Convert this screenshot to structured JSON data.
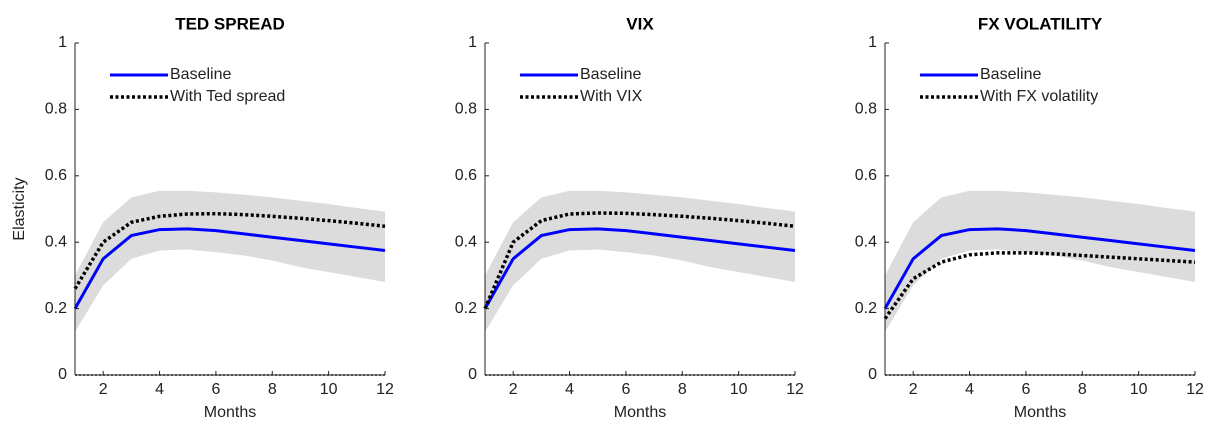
{
  "chart_data": [
    {
      "type": "line",
      "title": "TED SPREAD",
      "xlabel": "Months",
      "ylabel": "Elasticity",
      "x": [
        1,
        2,
        3,
        4,
        5,
        6,
        7,
        8,
        9,
        10,
        11,
        12
      ],
      "xlim": [
        1,
        12
      ],
      "xticks": [
        2,
        4,
        6,
        8,
        10,
        12
      ],
      "ylim": [
        0,
        1
      ],
      "yticks": [
        0,
        0.2,
        0.4,
        0.6,
        0.8,
        1
      ],
      "band": {
        "color": "#dcdcdc",
        "upper": [
          0.3,
          0.46,
          0.535,
          0.555,
          0.555,
          0.55,
          0.543,
          0.535,
          0.525,
          0.515,
          0.503,
          0.492
        ],
        "lower": [
          0.13,
          0.27,
          0.35,
          0.375,
          0.378,
          0.37,
          0.36,
          0.345,
          0.325,
          0.31,
          0.295,
          0.28
        ]
      },
      "reference_line": 0,
      "legend": "top",
      "series": [
        {
          "name": "Baseline",
          "color": "#0000ff",
          "style": "solid",
          "values": [
            0.2,
            0.35,
            0.42,
            0.438,
            0.44,
            0.435,
            0.425,
            0.415,
            0.405,
            0.395,
            0.385,
            0.375
          ]
        },
        {
          "name": "With Ted spread",
          "color": "#000000",
          "style": "dotted",
          "values": [
            0.26,
            0.4,
            0.46,
            0.478,
            0.485,
            0.486,
            0.483,
            0.478,
            0.472,
            0.465,
            0.457,
            0.448
          ]
        }
      ]
    },
    {
      "type": "line",
      "title": "VIX",
      "xlabel": "Months",
      "x": [
        1,
        2,
        3,
        4,
        5,
        6,
        7,
        8,
        9,
        10,
        11,
        12
      ],
      "xlim": [
        1,
        12
      ],
      "xticks": [
        2,
        4,
        6,
        8,
        10,
        12
      ],
      "ylim": [
        0,
        1
      ],
      "yticks": [
        0,
        0.2,
        0.4,
        0.6,
        0.8,
        1
      ],
      "band": {
        "color": "#dcdcdc",
        "upper": [
          0.3,
          0.46,
          0.535,
          0.555,
          0.555,
          0.55,
          0.543,
          0.535,
          0.525,
          0.515,
          0.503,
          0.492
        ],
        "lower": [
          0.13,
          0.27,
          0.35,
          0.375,
          0.378,
          0.37,
          0.36,
          0.345,
          0.325,
          0.31,
          0.295,
          0.28
        ]
      },
      "reference_line": 0,
      "legend": "top",
      "series": [
        {
          "name": "Baseline",
          "color": "#0000ff",
          "style": "solid",
          "values": [
            0.2,
            0.35,
            0.42,
            0.438,
            0.44,
            0.435,
            0.425,
            0.415,
            0.405,
            0.395,
            0.385,
            0.375
          ]
        },
        {
          "name": "With VIX",
          "color": "#000000",
          "style": "dotted",
          "values": [
            0.2,
            0.4,
            0.465,
            0.485,
            0.488,
            0.487,
            0.483,
            0.478,
            0.472,
            0.465,
            0.457,
            0.448
          ]
        }
      ]
    },
    {
      "type": "line",
      "title": "FX VOLATILITY",
      "xlabel": "Months",
      "x": [
        1,
        2,
        3,
        4,
        5,
        6,
        7,
        8,
        9,
        10,
        11,
        12
      ],
      "xlim": [
        1,
        12
      ],
      "xticks": [
        2,
        4,
        6,
        8,
        10,
        12
      ],
      "ylim": [
        0,
        1
      ],
      "yticks": [
        0,
        0.2,
        0.4,
        0.6,
        0.8,
        1
      ],
      "band": {
        "color": "#dcdcdc",
        "upper": [
          0.3,
          0.46,
          0.535,
          0.555,
          0.555,
          0.55,
          0.543,
          0.535,
          0.525,
          0.515,
          0.503,
          0.492
        ],
        "lower": [
          0.13,
          0.27,
          0.35,
          0.375,
          0.378,
          0.37,
          0.36,
          0.345,
          0.325,
          0.31,
          0.295,
          0.28
        ]
      },
      "reference_line": 0,
      "legend": "top",
      "series": [
        {
          "name": "Baseline",
          "color": "#0000ff",
          "style": "solid",
          "values": [
            0.2,
            0.35,
            0.42,
            0.438,
            0.44,
            0.435,
            0.425,
            0.415,
            0.405,
            0.395,
            0.385,
            0.375
          ]
        },
        {
          "name": "With FX volatility",
          "color": "#000000",
          "style": "dotted",
          "values": [
            0.17,
            0.29,
            0.34,
            0.362,
            0.368,
            0.368,
            0.365,
            0.36,
            0.355,
            0.35,
            0.345,
            0.34
          ]
        }
      ]
    }
  ]
}
